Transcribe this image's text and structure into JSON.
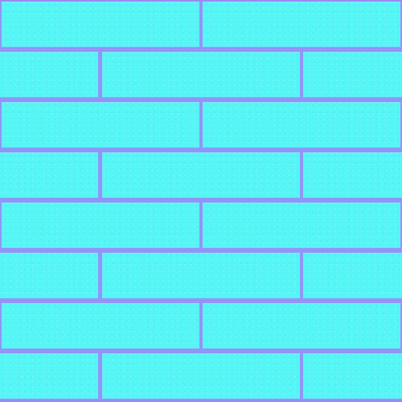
{
  "scene": {
    "type": "brick-wall-texture",
    "rows": 8,
    "pattern": [
      "offset-0",
      "offset-half",
      "offset-0",
      "offset-half",
      "offset-0",
      "offset-half",
      "offset-0",
      "offset-half"
    ]
  },
  "colors": {
    "brick": "#55f6f5",
    "mortar": "#9a86f2",
    "speckle_light": "#e6ffff",
    "speckle_blue": "#23afff"
  }
}
